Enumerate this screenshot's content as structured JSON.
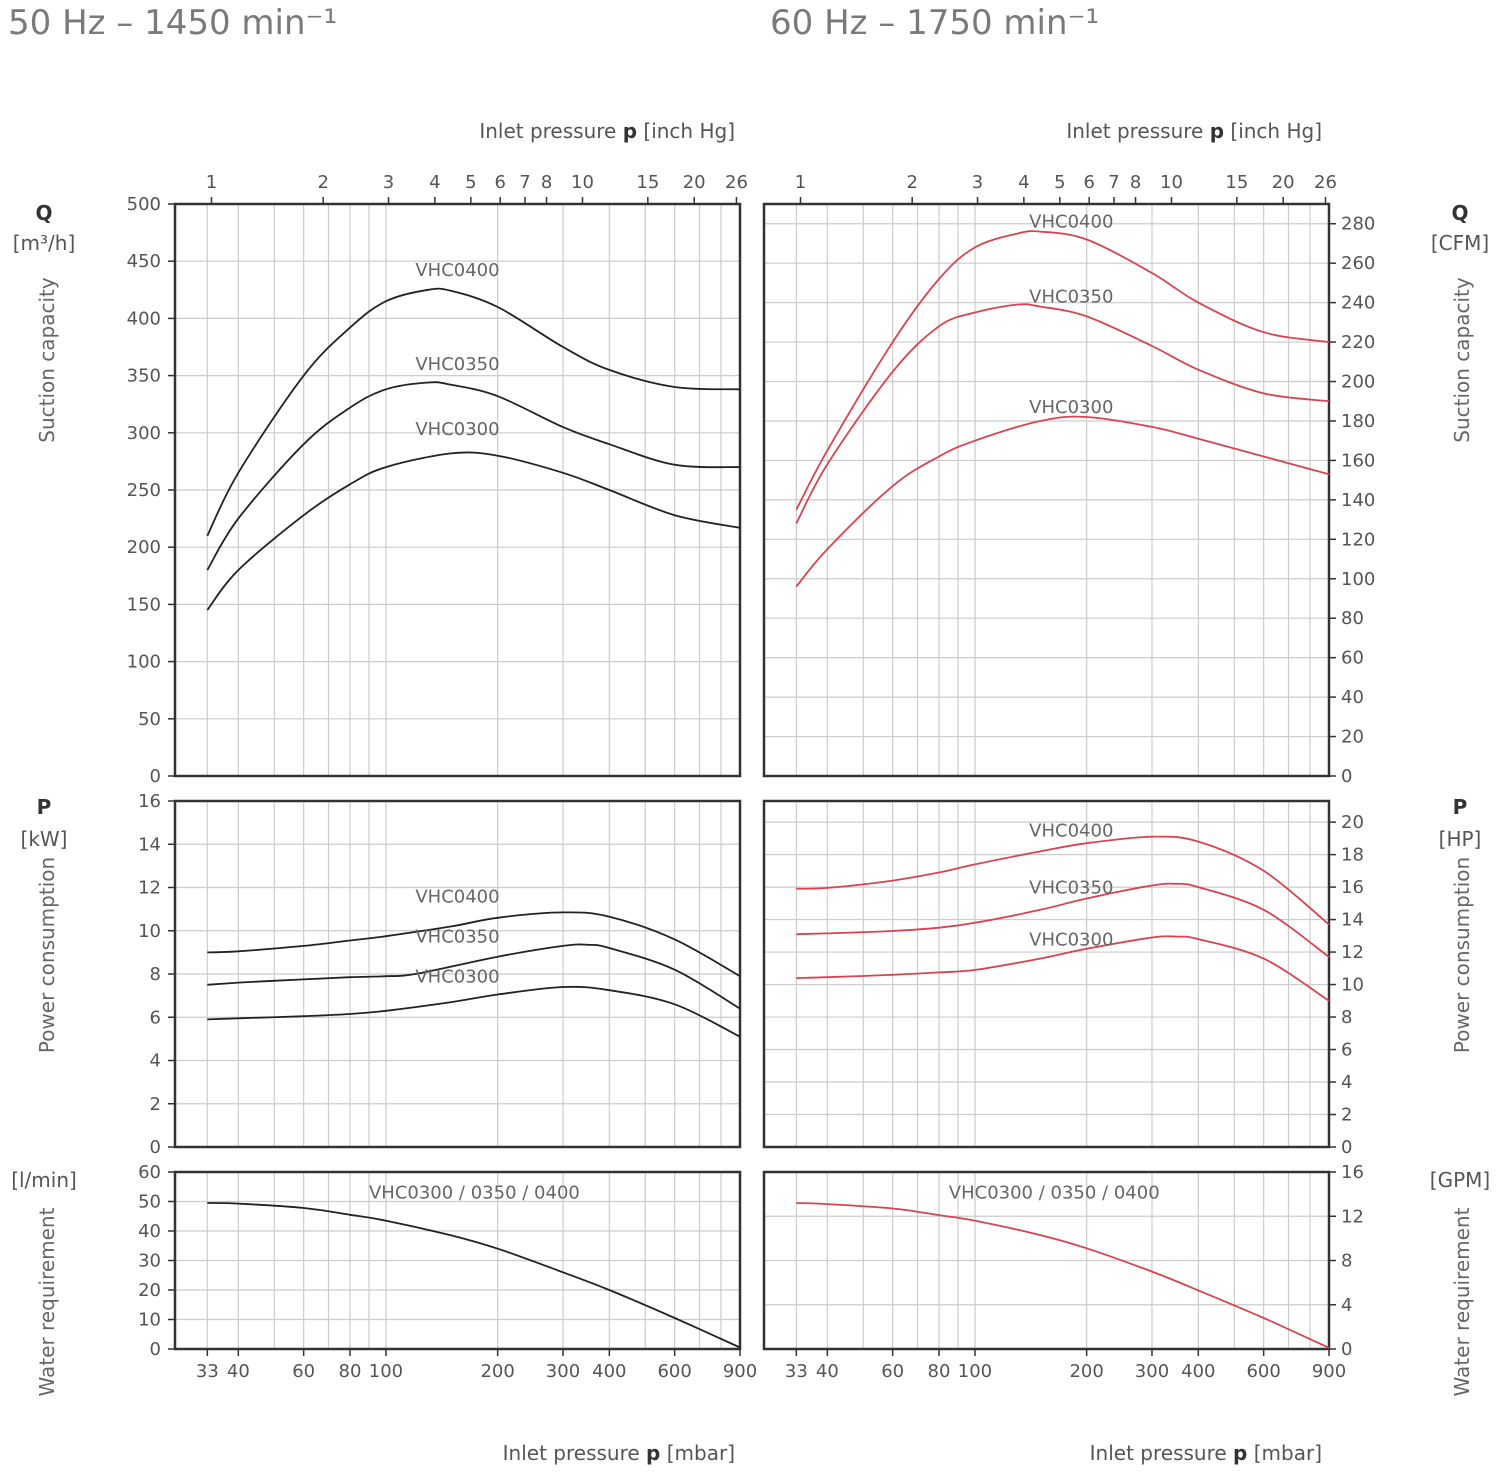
{
  "headers": {
    "left": "50 Hz – 1450 min⁻¹",
    "right": "60 Hz – 1750 min⁻¹"
  },
  "axes": {
    "top_title_pre": "Inlet pressure ",
    "top_title_var": "p",
    "top_title_unit": " [inch Hg]",
    "bottom_title_pre": "Inlet pressure ",
    "bottom_title_var": "p",
    "bottom_title_unit": " [mbar]",
    "mbar_ticks": [
      33,
      40,
      60,
      80,
      100,
      200,
      300,
      400,
      600,
      900
    ],
    "inhg_ticks": [
      1,
      2,
      3,
      4,
      5,
      6,
      7,
      8,
      10,
      15,
      20,
      26
    ],
    "left_q_symbol": "Q",
    "left_q_unit": "[m³/h]",
    "left_q_caption": "Suction capacity",
    "left_p_symbol": "P",
    "left_p_unit": "[kW]",
    "left_p_caption": "Power consumption",
    "left_w_unit": "[l/min]",
    "left_w_caption": "Water requirement",
    "right_q_symbol": "Q",
    "right_q_unit": "[CFM]",
    "right_q_caption": "Suction capacity",
    "right_p_symbol": "P",
    "right_p_unit": "[HP]",
    "right_p_caption": "Power consumption",
    "right_w_unit": "[GPM]",
    "right_w_caption": "Water requirement"
  },
  "colors": {
    "hz50": "#222222",
    "hz60": "#d9434f",
    "grid": "#cccccc",
    "frame": "#333333"
  },
  "chart_data": [
    {
      "type": "line",
      "title": "50 Hz – 1450 min⁻¹ suction capacity",
      "xlabel": "Inlet pressure p [mbar]",
      "ylabel": "Q [m³/h]",
      "ylim": [
        0,
        500
      ],
      "xscale": "log",
      "yticks": [
        0,
        50,
        100,
        150,
        200,
        250,
        300,
        350,
        400,
        450,
        500
      ],
      "series": [
        {
          "name": "VHC0400",
          "x": [
            33,
            40,
            60,
            80,
            100,
            130,
            150,
            200,
            300,
            400,
            600,
            900
          ],
          "y": [
            210,
            265,
            350,
            392,
            415,
            425,
            424,
            410,
            375,
            355,
            340,
            338
          ]
        },
        {
          "name": "VHC0350",
          "x": [
            33,
            40,
            60,
            80,
            100,
            130,
            150,
            200,
            300,
            400,
            600,
            900
          ],
          "y": [
            180,
            225,
            290,
            322,
            338,
            344,
            342,
            332,
            305,
            290,
            272,
            270
          ]
        },
        {
          "name": "VHC0300",
          "x": [
            33,
            40,
            60,
            80,
            100,
            150,
            200,
            300,
            400,
            600,
            900
          ],
          "y": [
            145,
            180,
            228,
            255,
            270,
            282,
            280,
            265,
            250,
            228,
            217
          ]
        }
      ]
    },
    {
      "type": "line",
      "title": "60 Hz – 1750 min⁻¹ suction capacity",
      "xlabel": "Inlet pressure p [mbar]",
      "ylabel": "Q [CFM]",
      "ylim": [
        0,
        290
      ],
      "xscale": "log",
      "yticks": [
        0,
        20,
        40,
        60,
        80,
        100,
        120,
        140,
        160,
        180,
        200,
        220,
        240,
        260,
        280
      ],
      "series": [
        {
          "name": "VHC0400",
          "x": [
            33,
            40,
            60,
            80,
            100,
            130,
            150,
            200,
            300,
            400,
            600,
            900
          ],
          "y": [
            135,
            165,
            220,
            252,
            268,
            275,
            276,
            272,
            255,
            240,
            225,
            220
          ]
        },
        {
          "name": "VHC0350",
          "x": [
            33,
            40,
            60,
            80,
            100,
            130,
            150,
            200,
            300,
            400,
            600,
            900
          ],
          "y": [
            128,
            158,
            205,
            228,
            235,
            239,
            238,
            233,
            218,
            206,
            194,
            190
          ]
        },
        {
          "name": "VHC0300",
          "x": [
            33,
            40,
            60,
            80,
            100,
            150,
            200,
            300,
            400,
            600,
            900
          ],
          "y": [
            96,
            115,
            147,
            162,
            170,
            180,
            182,
            177,
            171,
            162,
            153
          ]
        }
      ]
    },
    {
      "type": "line",
      "title": "50 Hz – 1450 min⁻¹ power consumption",
      "xlabel": "Inlet pressure p [mbar]",
      "ylabel": "P [kW]",
      "ylim": [
        0,
        16
      ],
      "xscale": "log",
      "yticks": [
        0,
        2,
        4,
        6,
        8,
        10,
        12,
        14,
        16
      ],
      "series": [
        {
          "name": "VHC0400",
          "x": [
            33,
            40,
            60,
            80,
            100,
            150,
            200,
            300,
            400,
            600,
            900
          ],
          "y": [
            9.0,
            9.05,
            9.3,
            9.55,
            9.75,
            10.2,
            10.6,
            10.85,
            10.65,
            9.6,
            7.9
          ]
        },
        {
          "name": "VHC0350",
          "x": [
            33,
            40,
            60,
            80,
            100,
            120,
            200,
            300,
            350,
            400,
            600,
            900
          ],
          "y": [
            7.5,
            7.6,
            7.75,
            7.85,
            7.9,
            8.0,
            8.8,
            9.3,
            9.35,
            9.2,
            8.2,
            6.4
          ]
        },
        {
          "name": "VHC0300",
          "x": [
            33,
            40,
            60,
            80,
            100,
            150,
            200,
            300,
            400,
            600,
            900
          ],
          "y": [
            5.9,
            5.95,
            6.05,
            6.15,
            6.3,
            6.7,
            7.05,
            7.4,
            7.25,
            6.6,
            5.1
          ]
        }
      ]
    },
    {
      "type": "line",
      "title": "60 Hz – 1750 min⁻¹ power consumption",
      "xlabel": "Inlet pressure p [mbar]",
      "ylabel": "P [HP]",
      "ylim": [
        0,
        21.3
      ],
      "xscale": "log",
      "yticks": [
        0,
        2,
        4,
        6,
        8,
        10,
        12,
        14,
        16,
        18,
        20
      ],
      "series": [
        {
          "name": "VHC0400",
          "x": [
            33,
            40,
            60,
            80,
            100,
            150,
            200,
            300,
            400,
            600,
            900
          ],
          "y": [
            15.9,
            15.95,
            16.4,
            16.9,
            17.4,
            18.2,
            18.7,
            19.1,
            18.8,
            17.0,
            13.7
          ]
        },
        {
          "name": "VHC0350",
          "x": [
            33,
            40,
            60,
            80,
            100,
            150,
            200,
            300,
            350,
            400,
            600,
            900
          ],
          "y": [
            13.1,
            13.15,
            13.3,
            13.5,
            13.8,
            14.6,
            15.3,
            16.1,
            16.2,
            16.0,
            14.6,
            11.7
          ]
        },
        {
          "name": "VHC0300",
          "x": [
            33,
            40,
            60,
            80,
            100,
            150,
            200,
            300,
            350,
            400,
            600,
            900
          ],
          "y": [
            10.4,
            10.45,
            10.6,
            10.75,
            10.9,
            11.6,
            12.2,
            12.9,
            12.95,
            12.8,
            11.6,
            9.0
          ]
        }
      ]
    },
    {
      "type": "line",
      "title": "50 Hz – 1450 min⁻¹ water requirement",
      "xlabel": "Inlet pressure p [mbar]",
      "ylabel": "[l/min]",
      "ylim": [
        0,
        60
      ],
      "xscale": "log",
      "yticks": [
        0,
        10,
        20,
        30,
        40,
        50,
        60
      ],
      "series": [
        {
          "name": "VHC0300 / 0350 / 0400",
          "x": [
            33,
            40,
            60,
            80,
            100,
            150,
            200,
            300,
            400,
            600,
            900
          ],
          "y": [
            49.5,
            49.3,
            47.8,
            45.5,
            43.5,
            38.5,
            34.0,
            26.0,
            20.0,
            10.5,
            0.5
          ]
        }
      ]
    },
    {
      "type": "line",
      "title": "60 Hz – 1750 min⁻¹ water requirement",
      "xlabel": "Inlet pressure p [mbar]",
      "ylabel": "[GPM]",
      "ylim": [
        0,
        16
      ],
      "xscale": "log",
      "yticks": [
        0,
        4,
        8,
        12,
        16
      ],
      "series": [
        {
          "name": "VHC0300 / 0350 / 0400",
          "x": [
            33,
            40,
            60,
            80,
            100,
            150,
            200,
            300,
            400,
            600,
            900
          ],
          "y": [
            13.2,
            13.1,
            12.7,
            12.1,
            11.6,
            10.3,
            9.1,
            7.0,
            5.3,
            2.8,
            0.1
          ]
        }
      ]
    }
  ]
}
